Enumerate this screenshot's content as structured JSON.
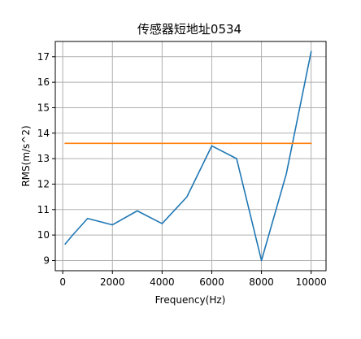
{
  "chart_data": {
    "type": "line",
    "title": "传感器短地址0534",
    "xlabel": "Frequency(Hz)",
    "ylabel": "RMS(m/s^2)",
    "xlim": [
      -300,
      10600
    ],
    "ylim": [
      8.6,
      17.6
    ],
    "x_ticks": [
      0,
      2000,
      4000,
      6000,
      8000,
      10000
    ],
    "y_ticks": [
      9,
      10,
      11,
      12,
      13,
      14,
      15,
      16,
      17
    ],
    "grid": true,
    "series": [
      {
        "color": "#1f77b4",
        "x": [
          100,
          400,
          1000,
          2000,
          3000,
          4000,
          5000,
          6000,
          7000,
          8000,
          9000,
          10000
        ],
        "y": [
          9.65,
          10.0,
          10.65,
          10.4,
          10.95,
          10.45,
          11.5,
          13.5,
          13.0,
          9.0,
          12.4,
          17.2
        ]
      },
      {
        "color": "#ff7f0e",
        "x": [
          100,
          10000
        ],
        "y": [
          13.6,
          13.6
        ]
      }
    ]
  }
}
